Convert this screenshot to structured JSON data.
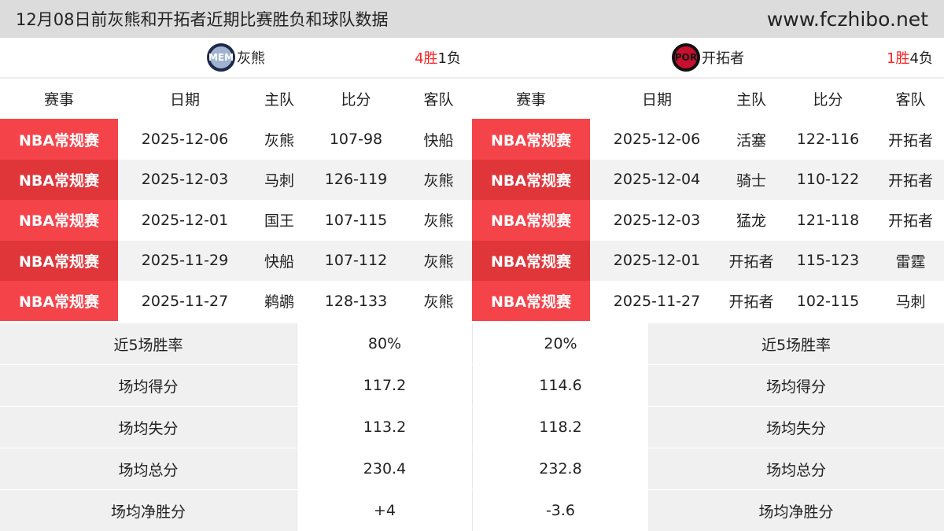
{
  "header": {
    "title": "12月08日前灰熊和开拓者近期比赛胜负和球队数据",
    "site": "www.fczhibo.net"
  },
  "columns": [
    "赛事",
    "日期",
    "主队",
    "比分",
    "客队"
  ],
  "left": {
    "logo_text": "MEM",
    "name": "灰熊",
    "wins": "4胜",
    "losses": "1负",
    "logo_colors": [
      "#1d2a4a",
      "#9fb2cf"
    ],
    "games": [
      [
        "NBA常规赛",
        "2025-12-06",
        "灰熊",
        "107-98",
        "快船"
      ],
      [
        "NBA常规赛",
        "2025-12-03",
        "马刺",
        "126-119",
        "灰熊"
      ],
      [
        "NBA常规赛",
        "2025-12-01",
        "国王",
        "107-115",
        "灰熊"
      ],
      [
        "NBA常规赛",
        "2025-11-29",
        "快船",
        "107-112",
        "灰熊"
      ],
      [
        "NBA常规赛",
        "2025-11-27",
        "鹈鹕",
        "128-133",
        "灰熊"
      ]
    ]
  },
  "right": {
    "logo_text": "POR",
    "name": "开拓者",
    "wins": "1胜",
    "losses": "4负",
    "logo_colors": [
      "#c8102e",
      "#111111"
    ],
    "games": [
      [
        "NBA常规赛",
        "2025-12-06",
        "活塞",
        "122-116",
        "开拓者"
      ],
      [
        "NBA常规赛",
        "2025-12-04",
        "骑士",
        "110-122",
        "开拓者"
      ],
      [
        "NBA常规赛",
        "2025-12-03",
        "猛龙",
        "121-118",
        "开拓者"
      ],
      [
        "NBA常规赛",
        "2025-12-01",
        "开拓者",
        "115-123",
        "雷霆"
      ],
      [
        "NBA常规赛",
        "2025-11-27",
        "开拓者",
        "102-115",
        "马刺"
      ]
    ]
  },
  "stats": [
    {
      "label": "近5场胜率",
      "left": "80%",
      "right": "20%"
    },
    {
      "label": "场均得分",
      "left": "117.2",
      "right": "114.6"
    },
    {
      "label": "场均失分",
      "left": "113.2",
      "right": "118.2"
    },
    {
      "label": "场均总分",
      "left": "230.4",
      "right": "232.8"
    },
    {
      "label": "场均净胜分",
      "left": "+4",
      "right": "-3.6"
    }
  ]
}
